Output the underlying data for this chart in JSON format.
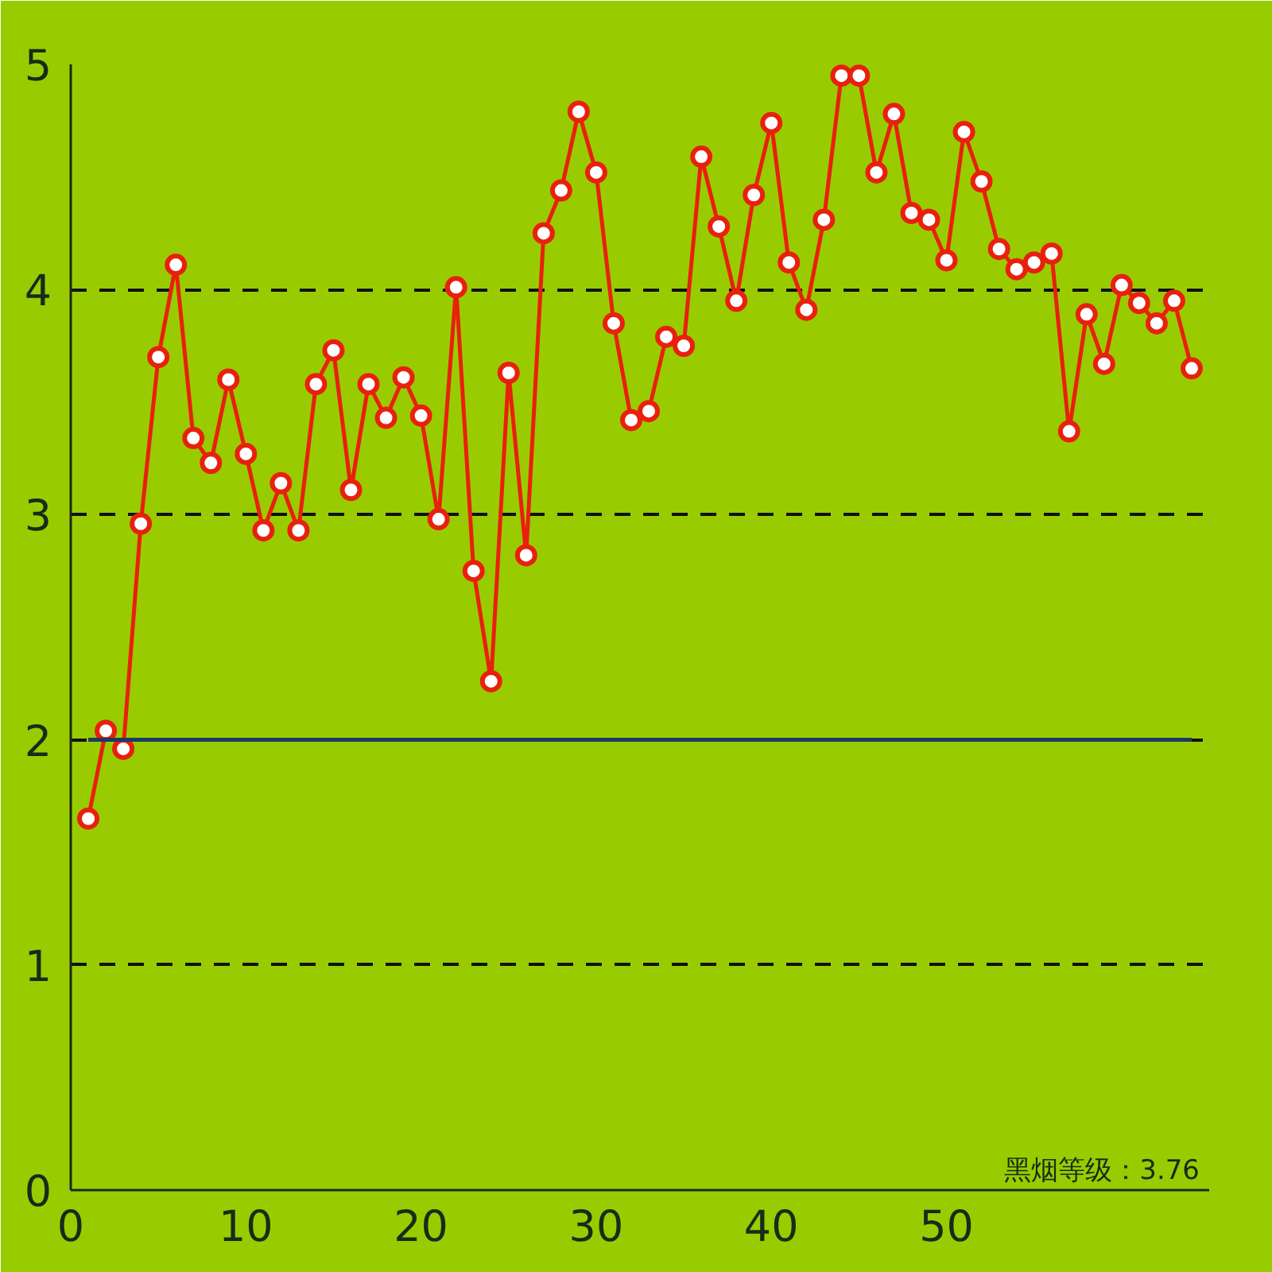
{
  "chart_data": {
    "type": "line",
    "x": [
      1,
      2,
      3,
      4,
      5,
      6,
      7,
      8,
      9,
      10,
      11,
      12,
      13,
      14,
      15,
      16,
      17,
      18,
      19,
      20,
      21,
      22,
      23,
      24,
      25,
      26,
      27,
      28,
      29,
      30,
      31,
      32,
      33,
      34,
      35,
      36,
      37,
      38,
      39,
      40,
      41,
      42,
      43,
      44,
      45,
      46,
      47,
      48,
      49,
      50,
      51,
      52,
      53,
      54,
      55,
      56,
      57,
      58,
      59,
      60,
      61,
      62,
      63,
      64
    ],
    "series": [
      {
        "color": "#e8200c",
        "values": [
          1.65,
          2.04,
          1.96,
          2.96,
          3.7,
          4.11,
          3.34,
          3.23,
          3.6,
          3.27,
          2.93,
          3.14,
          2.93,
          3.58,
          3.73,
          3.11,
          3.58,
          3.43,
          3.61,
          3.44,
          2.98,
          4.01,
          2.75,
          2.26,
          3.63,
          2.82,
          4.25,
          4.44,
          4.79,
          4.52,
          3.85,
          3.42,
          3.46,
          3.79,
          3.75,
          4.59,
          4.28,
          3.95,
          4.42,
          4.74,
          4.12,
          3.91,
          4.31,
          4.95,
          4.95,
          4.52,
          4.78,
          4.34,
          4.31,
          4.13,
          4.7,
          4.48,
          4.18,
          4.09,
          4.12,
          4.16,
          3.37,
          3.89,
          3.67,
          4.02,
          3.94,
          3.85,
          3.95,
          3.65
        ]
      },
      {
        "type": "line",
        "x": [
          1,
          64
        ],
        "values": [
          2,
          2
        ],
        "color": "#1b3a66",
        "marker": "none"
      }
    ],
    "xlim": [
      0,
      65
    ],
    "xticks": [
      0,
      10,
      20,
      30,
      40,
      50
    ],
    "ylim": [
      0,
      5
    ],
    "yticks": [
      0,
      1,
      2,
      3,
      4,
      5
    ],
    "grid": "y",
    "marker": "circle",
    "line_style": "solid",
    "annotations": [
      "黑烟等级：3.76"
    ]
  }
}
